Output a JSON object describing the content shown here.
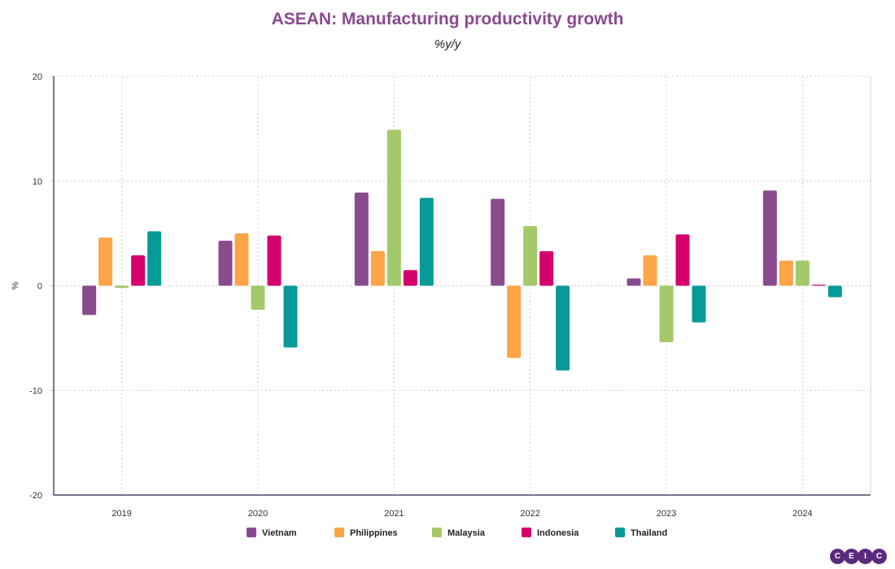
{
  "chart_data": {
    "type": "bar",
    "title": "ASEAN: Manufacturing productivity growth",
    "subtitle": "%y/y",
    "ylabel": "%",
    "xlabel": "",
    "ylim": [
      -20,
      20
    ],
    "yticks": [
      20,
      10,
      0,
      -10,
      -20
    ],
    "grid": true,
    "legend": "bottom",
    "categories": [
      "2019",
      "2020",
      "2021",
      "2022",
      "2023",
      "2024"
    ],
    "series": [
      {
        "name": "Vietnam",
        "color": "#8a4a8e",
        "values": [
          -2.8,
          4.3,
          8.9,
          8.3,
          0.7,
          9.1
        ]
      },
      {
        "name": "Philippines",
        "color": "#fca446",
        "values": [
          4.6,
          5.0,
          3.3,
          -6.9,
          2.9,
          2.4
        ]
      },
      {
        "name": "Malaysia",
        "color": "#a3c96a",
        "values": [
          -0.2,
          -2.3,
          14.9,
          5.7,
          -5.4,
          2.4
        ]
      },
      {
        "name": "Indonesia",
        "color": "#d6006d",
        "values": [
          2.9,
          4.8,
          1.5,
          3.3,
          4.9,
          0.1
        ]
      },
      {
        "name": "Thailand",
        "color": "#069a98",
        "values": [
          5.2,
          -5.9,
          8.4,
          -8.1,
          -3.5,
          -1.1
        ]
      }
    ]
  },
  "logo": [
    "C",
    "E",
    "I",
    "C"
  ]
}
